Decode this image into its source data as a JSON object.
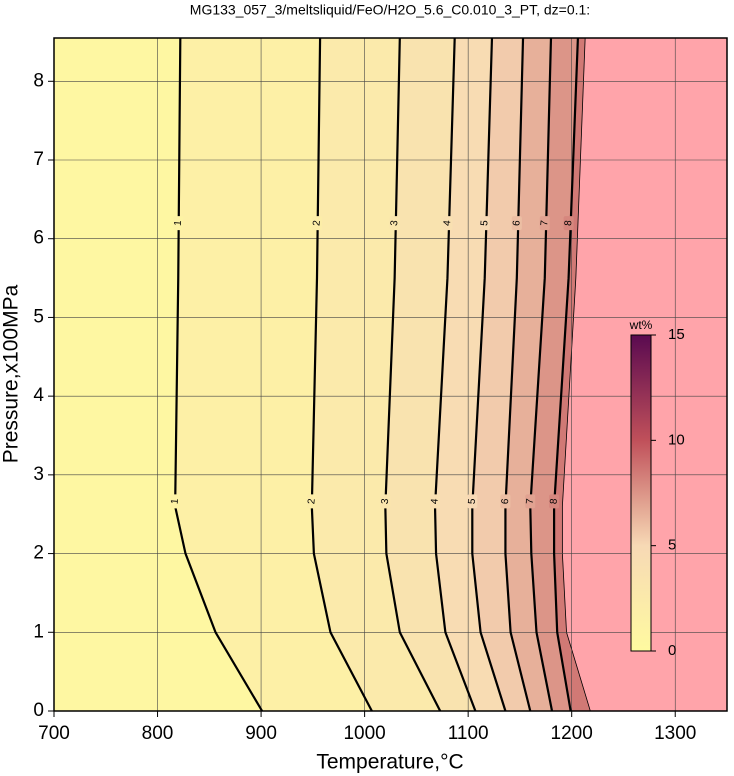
{
  "chart_data": {
    "type": "contour",
    "title": "MG133_057_3/meltsliquid/FeO/H2O_5.6_C0.010_3_PT, dz=0.1:",
    "x_label": "Temperature,°C",
    "y_label": "Pressure,x100MPa",
    "y": [
      0,
      1,
      2,
      2.6,
      5.5,
      8.55
    ],
    "series": [
      {
        "name": "1",
        "color": "#000000",
        "values": [
          901,
          856,
          827,
          817,
          820,
          822
        ]
      },
      {
        "name": "2",
        "color": "#000000",
        "values": [
          1007,
          967,
          951,
          949,
          954,
          957
        ]
      },
      {
        "name": "3",
        "color": "#000000",
        "values": [
          1073,
          1034,
          1021,
          1020,
          1029,
          1034
        ]
      },
      {
        "name": "4",
        "color": "#000000",
        "values": [
          1107,
          1078,
          1069,
          1068,
          1080,
          1087
        ]
      },
      {
        "name": "5",
        "color": "#000000",
        "values": [
          1136,
          1112,
          1104,
          1104,
          1116,
          1123
        ]
      },
      {
        "name": "6",
        "color": "#000000",
        "values": [
          1160,
          1141,
          1136,
          1136,
          1147,
          1153
        ]
      },
      {
        "name": "7",
        "color": "#000000",
        "values": [
          1181,
          1166,
          1161,
          1160,
          1174,
          1180
        ]
      },
      {
        "name": "8",
        "color": "#000000",
        "values": [
          1199,
          1186,
          1183,
          1183,
          1197,
          1206
        ]
      }
    ],
    "melt_boundary": [
      1218,
      1195,
      1191,
      1191,
      1204,
      1213
    ],
    "no_data_color": "#ffa4aa",
    "colorscale": [
      "#fffaa0",
      "#f7d9b5",
      "#c0505a",
      "#5a0a50"
    ],
    "clim": [
      0,
      15
    ],
    "cticks": [
      0,
      5,
      10,
      15
    ],
    "clabel": "wt%",
    "xlim": [
      700,
      1350
    ],
    "xticks": [
      700,
      800,
      900,
      1000,
      1100,
      1200,
      1300
    ],
    "ylim": [
      0,
      8.55
    ],
    "yticks": [
      0,
      1,
      2,
      3,
      4,
      5,
      6,
      7,
      8
    ],
    "grid": true
  }
}
